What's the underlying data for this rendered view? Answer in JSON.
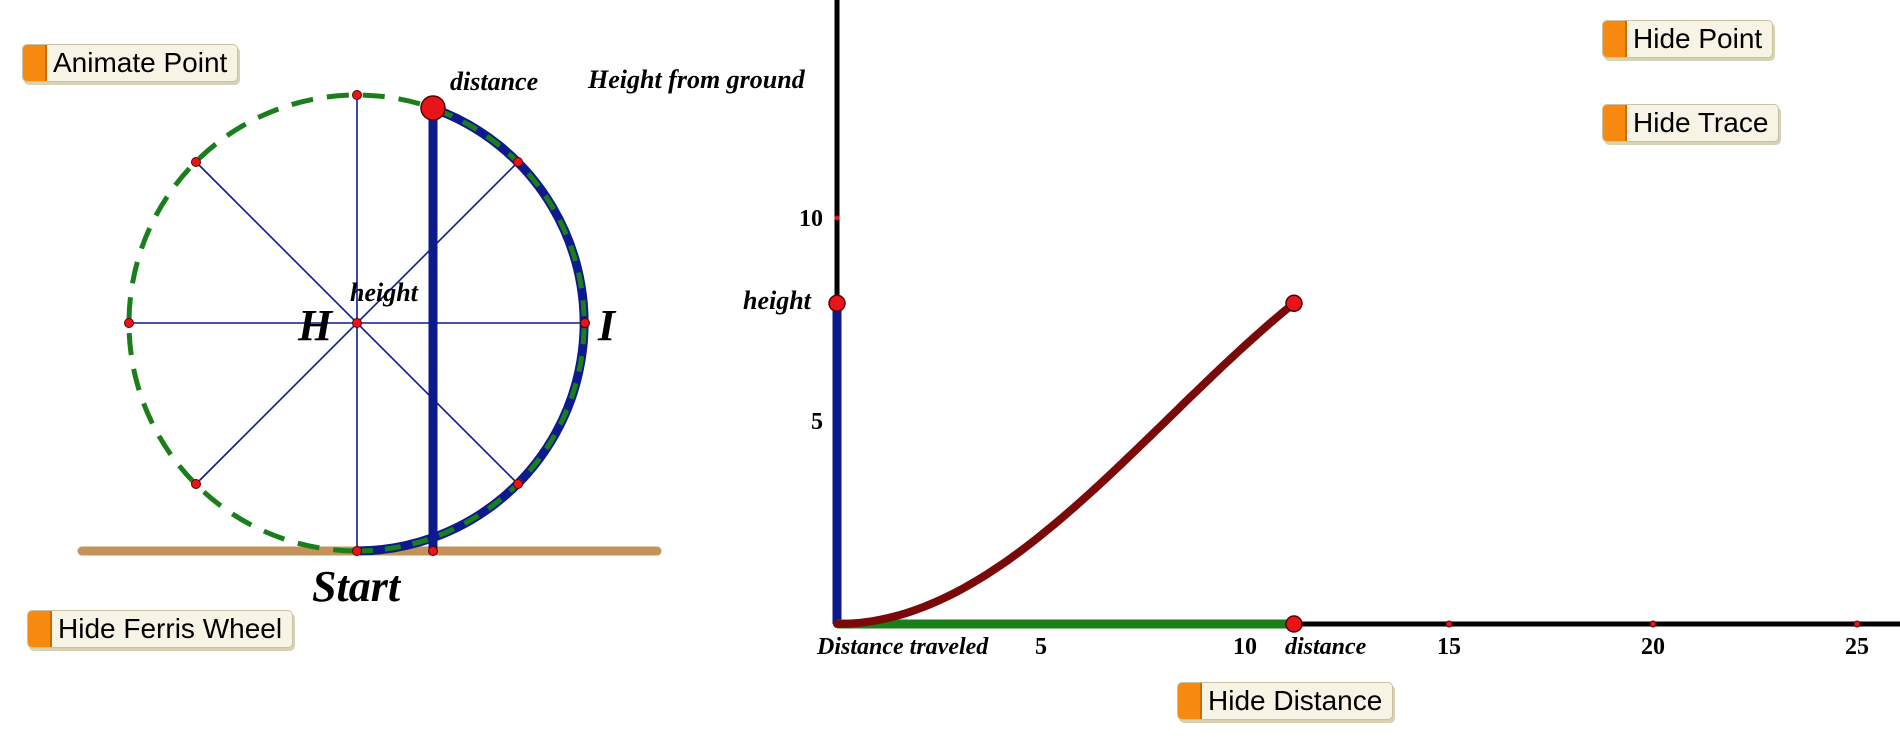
{
  "buttons": {
    "animate_point": "Animate Point",
    "hide_ferris_wheel": "Hide Ferris Wheel",
    "hide_point": "Hide Point",
    "hide_trace": "Hide Trace",
    "hide_distance": "Hide Distance"
  },
  "wheel": {
    "label_distance": "distance",
    "label_height": "height",
    "label_H": "H",
    "label_I": "I",
    "label_start": "Start"
  },
  "graph": {
    "ylabel": "Height from ground",
    "xlabel": "Distance traveled",
    "point_y_label": "height",
    "point_x_label": "distance",
    "y_ticks": [
      "5",
      "10"
    ],
    "x_ticks": [
      "5",
      "10",
      "15",
      "20",
      "25"
    ]
  },
  "colors": {
    "wheel_dashed": "#1a7f1a",
    "spokes": "#0d1a8c",
    "height_bar": "#0d1a8c",
    "ground": "#c4935a",
    "curve": "#7a0a0a",
    "point": "#e8141a",
    "distance_bar": "#1a7f1a",
    "button_tab": "#f7890f"
  },
  "chart_data": {
    "type": "line",
    "xlabel": "Distance traveled",
    "ylabel": "Height from ground",
    "xlim": [
      0,
      26
    ],
    "ylim": [
      0,
      15.5
    ],
    "x_ticks": [
      5,
      10,
      15,
      20,
      25
    ],
    "y_ticks": [
      5,
      10
    ],
    "series": [
      {
        "x": [
          0,
          1.4,
          2.8,
          4.2,
          5.6,
          7.0,
          8.4,
          9.8,
          11.2
        ],
        "y": [
          0,
          0.27,
          1.06,
          2.3,
          3.87,
          5.53,
          7.1,
          8.35,
          7.9
        ]
      }
    ],
    "current_point": {
      "x": 11.2,
      "y": 7.9
    }
  }
}
